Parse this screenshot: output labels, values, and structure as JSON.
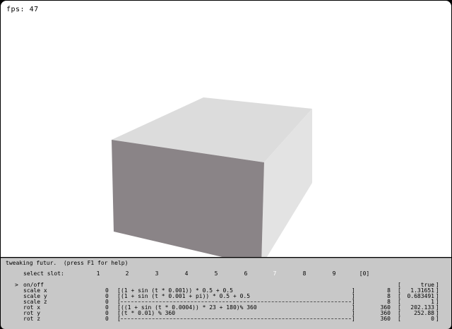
{
  "hud": {
    "fps": "fps: 47"
  },
  "colors": {
    "background": "#ffffff",
    "front_face": "#8a8487",
    "top_face": "#dcdcdc",
    "side_face": "#e4e4e4",
    "panel": "#c8c8c8"
  },
  "tweak": {
    "title": "tweaking futur.  (press F1 for help)",
    "select_label": "select slot:",
    "slots": [
      "1",
      "2",
      "3",
      "4",
      "5",
      "6",
      "7",
      "8",
      "9",
      "[0]"
    ],
    "active_slot": "7",
    "cursor": ">",
    "rows": [
      {
        "name": "on/off",
        "lo": "",
        "expr": "",
        "hi": "",
        "value": "true"
      },
      {
        "name": "scale x",
        "lo": "0",
        "expr": "(1 + sin (t * 0.001)) * 0.5 + 0.5",
        "hi": "8",
        "value": "1.31651"
      },
      {
        "name": "scale y",
        "lo": "0",
        "expr": "(1 + sin (t * 0.001 + pi)) * 0.5 + 0.5",
        "hi": "8",
        "value": "0.683491"
      },
      {
        "name": "scale z",
        "lo": "0",
        "expr": "",
        "hi": "8",
        "value": "1"
      },
      {
        "name": "rot x",
        "lo": "0",
        "expr": "((1 + sin (t * 0.0004)) * 23 + 180)% 360",
        "hi": "360",
        "value": "202.133"
      },
      {
        "name": "rot y",
        "lo": "0",
        "expr": "(t * 0.01) % 360",
        "hi": "360",
        "value": "252.88"
      },
      {
        "name": "rot z",
        "lo": "0",
        "expr": "",
        "hi": "360",
        "value": "0"
      }
    ]
  }
}
